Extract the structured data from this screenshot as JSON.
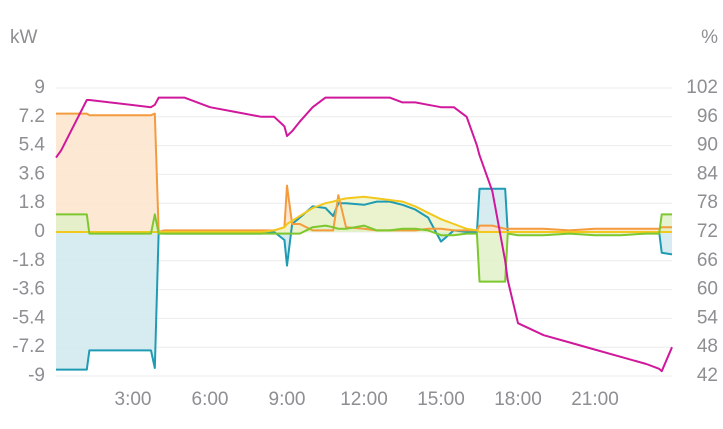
{
  "chart_data": {
    "type": "line",
    "y_label": "kW",
    "y2_label": "%",
    "xlim": [
      0,
      24
    ],
    "xticks": [
      {
        "value": 3,
        "label": "3:00"
      },
      {
        "value": 6,
        "label": "6:00"
      },
      {
        "value": 9,
        "label": "9:00"
      },
      {
        "value": 12,
        "label": "12:00"
      },
      {
        "value": 15,
        "label": "15:00"
      },
      {
        "value": 18,
        "label": "18:00"
      },
      {
        "value": 21,
        "label": "21:00"
      }
    ],
    "ylim": [
      -9,
      9
    ],
    "yticks": [
      9,
      7.2,
      5.4,
      3.6,
      1.8,
      0,
      -1.8,
      -3.6,
      -5.4,
      -7.2,
      -9
    ],
    "y2lim": [
      42,
      102
    ],
    "y2ticks": [
      102,
      96,
      90,
      84,
      78,
      72,
      66,
      60,
      54,
      48,
      42
    ],
    "grid": true,
    "area": true,
    "x": [
      0,
      0.2,
      1.2,
      1.3,
      3.7,
      3.85,
      4.0,
      4.2,
      5,
      6,
      7,
      8,
      8.5,
      8.9,
      9.0,
      9.2,
      9.5,
      10,
      10.5,
      10.8,
      11,
      11.3,
      12,
      12.5,
      13,
      13.5,
      14,
      14.5,
      15,
      15.5,
      16,
      16.4,
      16.5,
      17,
      17.5,
      17.6,
      18,
      19,
      20,
      21,
      22,
      23,
      23.5,
      23.6,
      24
    ],
    "series": [
      {
        "color": "#1f9bb4",
        "fill_color": "#cfe9ef",
        "values": [
          -8.6,
          -8.6,
          -8.6,
          -7.4,
          -7.4,
          -8.5,
          0,
          -0.1,
          -0.1,
          -0.1,
          -0.1,
          -0.1,
          0,
          -0.5,
          -2.1,
          0.5,
          0.9,
          1.6,
          1.5,
          1.0,
          1.8,
          1.8,
          1.7,
          1.9,
          1.9,
          1.7,
          1.4,
          0.9,
          -0.6,
          0.1,
          0,
          0,
          2.7,
          2.7,
          2.7,
          0,
          0,
          0,
          0,
          0,
          0,
          0,
          0,
          -1.3,
          -1.4
        ]
      },
      {
        "color": "#f49b3e",
        "fill_color": "#fde4cc",
        "values": [
          7.4,
          7.4,
          7.4,
          7.3,
          7.3,
          7.4,
          0,
          0.1,
          0.1,
          0.1,
          0.1,
          0.1,
          0.1,
          0.3,
          2.9,
          0.5,
          0.5,
          0.1,
          0.1,
          0.1,
          2.3,
          0.3,
          0.2,
          0.1,
          0.1,
          0.1,
          0.1,
          0.2,
          0.2,
          0.1,
          0.1,
          0.1,
          0.4,
          0.4,
          0.2,
          0.2,
          0.2,
          0.2,
          0.1,
          0.2,
          0.2,
          0.2,
          0.2,
          0.3,
          0.3
        ]
      },
      {
        "color": "#f2c81e",
        "fill_color": "#eef3c8",
        "values": [
          0,
          0,
          0,
          0,
          0,
          0,
          0,
          0,
          0,
          0,
          0,
          0,
          0.1,
          0.3,
          0.5,
          0.7,
          1.0,
          1.5,
          1.8,
          1.9,
          2.0,
          2.1,
          2.2,
          2.1,
          2.0,
          1.9,
          1.6,
          1.2,
          0.8,
          0.5,
          0.2,
          0.1,
          0,
          0,
          0,
          0,
          0,
          0,
          0,
          0,
          0,
          0,
          0,
          0,
          0
        ]
      },
      {
        "color": "#7dc82e",
        "fill_color": "#e0f1c9",
        "values": [
          1.1,
          1.1,
          1.1,
          -0.1,
          -0.1,
          1.1,
          -0.1,
          -0.1,
          -0.1,
          -0.1,
          -0.1,
          -0.1,
          -0.1,
          -0.1,
          -0.1,
          -0.1,
          -0.1,
          0.3,
          0.4,
          0.3,
          0.2,
          0.2,
          0.4,
          0.1,
          0.1,
          0.2,
          0.2,
          0.1,
          -0.2,
          -0.2,
          -0.1,
          -0.1,
          -3.1,
          -3.1,
          -3.1,
          -0.1,
          -0.2,
          -0.2,
          -0.1,
          -0.2,
          -0.2,
          -0.1,
          -0.1,
          1.1,
          1.1
        ]
      },
      {
        "color": "#d0189c",
        "axis": "y2",
        "values": [
          87.5,
          89,
          99.5,
          99.5,
          98,
          98.5,
          100,
          100,
          100,
          98,
          97,
          96,
          96,
          94,
          92,
          93,
          95,
          98,
          100,
          100,
          100,
          100,
          100,
          100,
          100,
          99,
          99,
          98.5,
          98,
          98,
          96,
          90,
          88,
          80.5,
          66,
          62,
          53,
          50.5,
          49,
          47.5,
          46,
          44.5,
          43.5,
          43,
          48
        ]
      }
    ]
  }
}
